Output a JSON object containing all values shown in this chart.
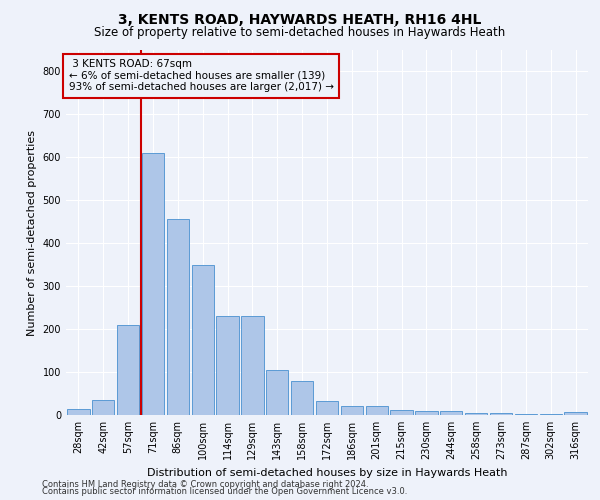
{
  "title": "3, KENTS ROAD, HAYWARDS HEATH, RH16 4HL",
  "subtitle": "Size of property relative to semi-detached houses in Haywards Heath",
  "xlabel": "Distribution of semi-detached houses by size in Haywards Heath",
  "ylabel": "Number of semi-detached properties",
  "categories": [
    "28sqm",
    "42sqm",
    "57sqm",
    "71sqm",
    "86sqm",
    "100sqm",
    "114sqm",
    "129sqm",
    "143sqm",
    "158sqm",
    "172sqm",
    "186sqm",
    "201sqm",
    "215sqm",
    "230sqm",
    "244sqm",
    "258sqm",
    "273sqm",
    "287sqm",
    "302sqm",
    "316sqm"
  ],
  "values": [
    13,
    35,
    210,
    610,
    457,
    350,
    230,
    230,
    105,
    80,
    32,
    22,
    22,
    12,
    10,
    10,
    5,
    5,
    2,
    2,
    6
  ],
  "bar_color": "#aec6e8",
  "bar_edge_color": "#5b9bd5",
  "property_label": "3 KENTS ROAD: 67sqm",
  "pct_smaller": "6%",
  "pct_smaller_count": 139,
  "pct_larger": "93%",
  "pct_larger_count": 2017,
  "vline_color": "#cc0000",
  "vline_position": 2.5,
  "annotation_box_color": "#cc0000",
  "footer_line1": "Contains HM Land Registry data © Crown copyright and database right 2024.",
  "footer_line2": "Contains public sector information licensed under the Open Government Licence v3.0.",
  "ylim": [
    0,
    850
  ],
  "yticks": [
    0,
    100,
    200,
    300,
    400,
    500,
    600,
    700,
    800
  ],
  "background_color": "#eef2fa",
  "grid_color": "#ffffff",
  "title_fontsize": 10,
  "subtitle_fontsize": 8.5,
  "ylabel_fontsize": 8,
  "xlabel_fontsize": 8,
  "tick_fontsize": 7,
  "annotation_fontsize": 7.5,
  "footer_fontsize": 6
}
